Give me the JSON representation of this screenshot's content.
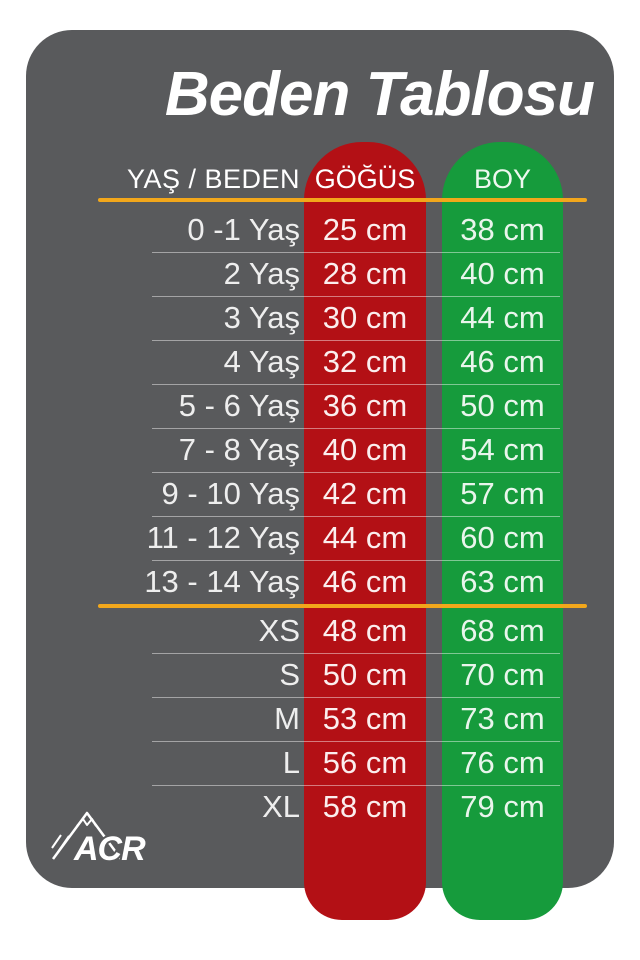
{
  "title": "Beden Tablosu",
  "brand": {
    "name": "ACR"
  },
  "colors": {
    "card_bg": "#595a5c",
    "chest_column": "#b31015",
    "height_column": "#169b3c",
    "accent_line": "#f2a71b"
  },
  "chart_data": {
    "type": "table",
    "title": "Beden Tablosu",
    "columns": [
      "YAŞ / BEDEN",
      "GÖĞÜS",
      "BOY"
    ],
    "groups": [
      {
        "label": "ages",
        "rows": [
          [
            "0 -1 Yaş",
            "25 cm",
            "38 cm"
          ],
          [
            "2 Yaş",
            "28 cm",
            "40 cm"
          ],
          [
            "3 Yaş",
            "30 cm",
            "44 cm"
          ],
          [
            "4 Yaş",
            "32 cm",
            "46 cm"
          ],
          [
            "5 - 6 Yaş",
            "36 cm",
            "50 cm"
          ],
          [
            "7 - 8 Yaş",
            "40 cm",
            "54 cm"
          ],
          [
            "9 - 10 Yaş",
            "42 cm",
            "57 cm"
          ],
          [
            "11 - 12 Yaş",
            "44 cm",
            "60 cm"
          ],
          [
            "13 - 14 Yaş",
            "46 cm",
            "63 cm"
          ]
        ]
      },
      {
        "label": "sizes",
        "rows": [
          [
            "XS",
            "48 cm",
            "68 cm"
          ],
          [
            "S",
            "50 cm",
            "70 cm"
          ],
          [
            "M",
            "53 cm",
            "73 cm"
          ],
          [
            "L",
            "56 cm",
            "76 cm"
          ],
          [
            "XL",
            "58 cm",
            "79 cm"
          ]
        ]
      }
    ]
  }
}
